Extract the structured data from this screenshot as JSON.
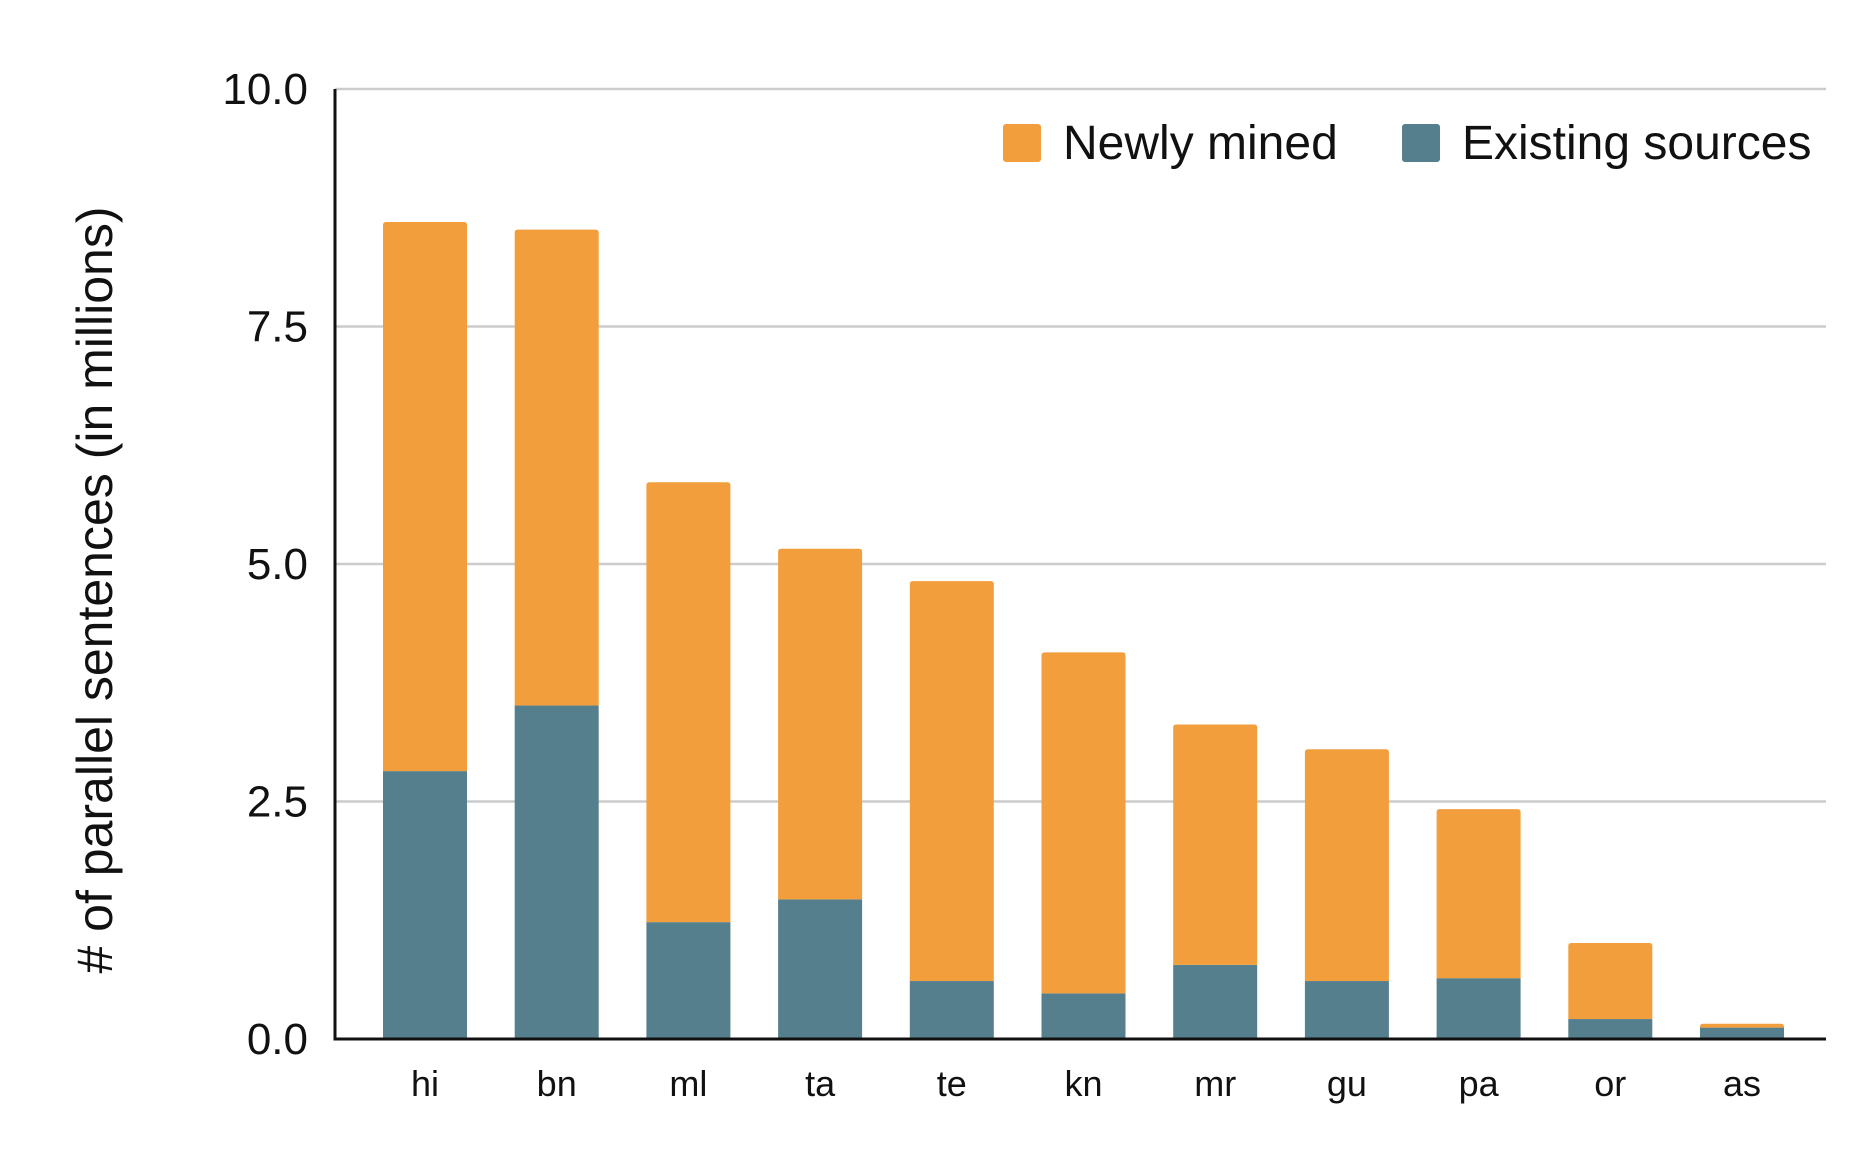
{
  "chart_data": {
    "type": "bar",
    "stacked": true,
    "title": "",
    "xlabel": "",
    "ylabel": "# of parallel sentences (in millions)",
    "ylim": [
      0,
      10
    ],
    "yticks": [
      "0.0",
      "2.5",
      "5.0",
      "7.5",
      "10.0"
    ],
    "grid": true,
    "legend_position": "top-right",
    "categories": [
      "hi",
      "bn",
      "ml",
      "ta",
      "te",
      "kn",
      "mr",
      "gu",
      "pa",
      "or",
      "as"
    ],
    "series": [
      {
        "name": "Existing sources",
        "color": "#557F8C",
        "values": [
          2.82,
          3.51,
          1.23,
          1.47,
          0.61,
          0.48,
          0.78,
          0.61,
          0.64,
          0.21,
          0.12
        ]
      },
      {
        "name": "Newly mined",
        "color": "#F29E3D",
        "values": [
          5.78,
          5.01,
          4.63,
          3.69,
          4.21,
          3.59,
          2.53,
          2.44,
          1.78,
          0.8,
          0.04
        ]
      }
    ],
    "legend_order": [
      "Newly mined",
      "Existing sources"
    ]
  }
}
